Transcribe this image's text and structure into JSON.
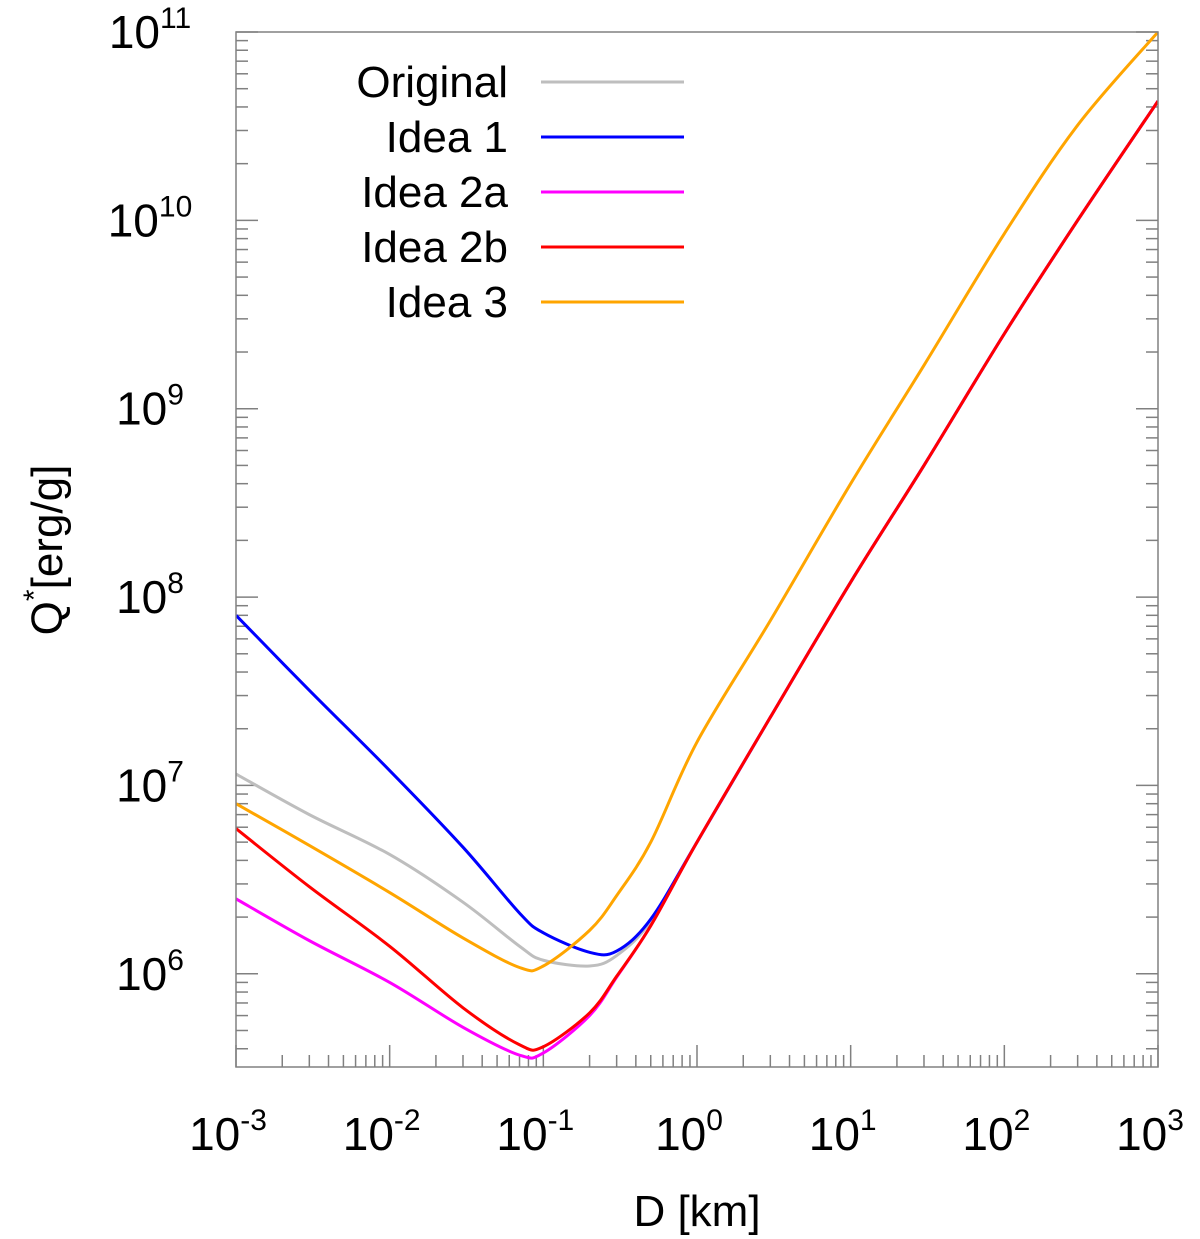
{
  "chart_data": {
    "type": "line",
    "title": "",
    "xlabel": "D [km]",
    "ylabel": "Q* [erg/g]",
    "xscale": "log",
    "yscale": "log",
    "xlim": [
      0.001,
      1000
    ],
    "ylim": [
      320000,
      100000000000
    ],
    "grid": false,
    "legend_position": "upper left",
    "x_ticks": [
      "10^-3",
      "10^-2",
      "10^-1",
      "10^0",
      "10^1",
      "10^2",
      "10^3"
    ],
    "y_ticks": [
      "10^6",
      "10^7",
      "10^8",
      "10^9",
      "10^10",
      "10^11"
    ],
    "x": [
      0.001,
      0.003,
      0.01,
      0.03,
      0.07,
      0.1,
      0.2,
      0.3,
      0.5,
      1,
      3,
      10,
      30,
      100,
      300,
      1000
    ],
    "series": [
      {
        "name": "Original",
        "color": "#bebebe",
        "values": [
          11500000,
          7000000,
          4300000,
          2400000,
          1400000,
          1180000,
          1100000,
          1250000,
          1900000,
          5000000,
          23000000,
          120000000,
          500000000,
          2500000000,
          10000000000,
          43000000000
        ]
      },
      {
        "name": "Idea 1",
        "color": "#0000ff",
        "values": [
          80000000,
          32000000,
          12000000,
          4700000,
          2100000,
          1650000,
          1300000,
          1320000,
          1950000,
          5000000,
          23000000,
          120000000,
          500000000,
          2500000000,
          10000000000,
          43000000000
        ]
      },
      {
        "name": "Idea 2a",
        "color": "#ff00ff",
        "values": [
          2500000,
          1500000,
          900000,
          520000,
          370000,
          380000,
          600000,
          960000,
          1800000,
          5000000,
          23000000,
          120000000,
          500000000,
          2500000000,
          10000000000,
          43000000000
        ]
      },
      {
        "name": "Idea 2b",
        "color": "#ff0000",
        "values": [
          5900000,
          2900000,
          1400000,
          660000,
          420000,
          410000,
          620000,
          970000,
          1800000,
          5000000,
          23000000,
          120000000,
          500000000,
          2500000000,
          10000000000,
          43000000000
        ]
      },
      {
        "name": "Idea 3",
        "color": "#ffa500",
        "values": [
          8000000,
          4800000,
          2700000,
          1550000,
          1080000,
          1100000,
          1700000,
          2600000,
          5000000,
          17000000,
          75000000,
          400000000,
          1700000000,
          8500000000,
          32000000000,
          100000000000
        ]
      }
    ]
  },
  "axes": {
    "xlabel": "D [km]",
    "ylabel_main": "Q",
    "ylabel_sup": "*",
    "ylabel_unit": "[erg/g]",
    "x_tick_base": "10",
    "x_tick_exps": [
      "-3",
      "-2",
      "-1",
      "0",
      "1",
      "2",
      "3"
    ],
    "y_tick_base": "10",
    "y_tick_exps": [
      "6",
      "7",
      "8",
      "9",
      "10",
      "11"
    ]
  },
  "legend": {
    "items": [
      {
        "label": "Original",
        "color": "#bebebe"
      },
      {
        "label": "Idea 1",
        "color": "#0000ff"
      },
      {
        "label": "Idea 2a",
        "color": "#ff00ff"
      },
      {
        "label": "Idea 2b",
        "color": "#ff0000"
      },
      {
        "label": "Idea 3",
        "color": "#ffa500"
      }
    ]
  }
}
